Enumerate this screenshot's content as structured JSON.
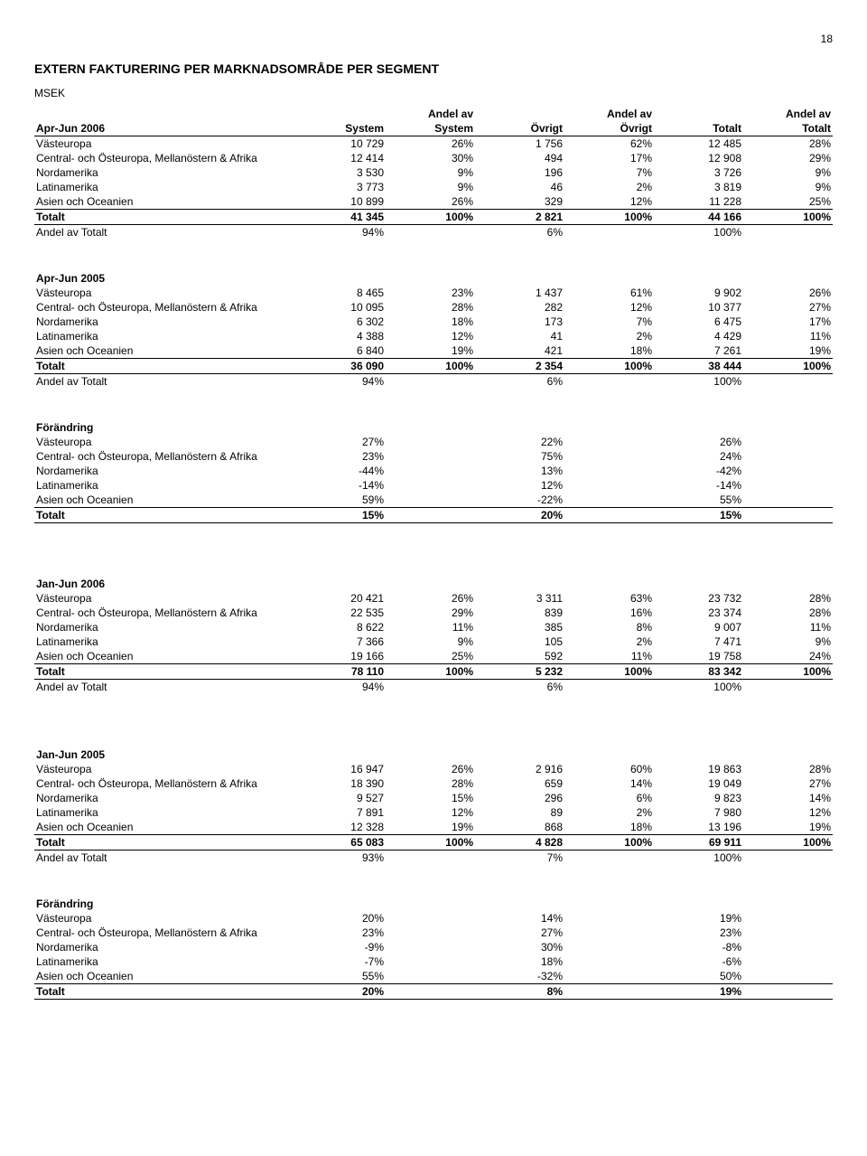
{
  "page_number": "18",
  "title": "EXTERN FAKTURERING PER MARKNADSOMRÅDE PER SEGMENT",
  "unit": "MSEK",
  "header": {
    "andelav": "Andel av",
    "c1": "System",
    "c2": "System",
    "c3": "Övrigt",
    "c4": "Övrigt",
    "c5": "Totalt",
    "c6": "Totalt"
  },
  "region_labels": {
    "vasteuropa": "Västeuropa",
    "centraleast": "Central- och Östeuropa, Mellanöstern & Afrika",
    "nordamerika": "Nordamerika",
    "latinamerika": "Latinamerika",
    "asien": "Asien och Oceanien",
    "totalt": "Totalt",
    "andelav": "Andel av Totalt"
  },
  "sections": {
    "apr06": {
      "title": "Apr-Jun 2006",
      "r": {
        "vasteuropa": [
          "10 729",
          "26%",
          "1 756",
          "62%",
          "12 485",
          "28%"
        ],
        "centraleast": [
          "12 414",
          "30%",
          "494",
          "17%",
          "12 908",
          "29%"
        ],
        "nordamerika": [
          "3 530",
          "9%",
          "196",
          "7%",
          "3 726",
          "9%"
        ],
        "latinamerika": [
          "3 773",
          "9%",
          "46",
          "2%",
          "3 819",
          "9%"
        ],
        "asien": [
          "10 899",
          "26%",
          "329",
          "12%",
          "11 228",
          "25%"
        ]
      },
      "tot": [
        "41 345",
        "100%",
        "2 821",
        "100%",
        "44 166",
        "100%"
      ],
      "share": [
        "94%",
        "",
        "6%",
        "",
        "100%",
        ""
      ]
    },
    "apr05": {
      "title": "Apr-Jun 2005",
      "r": {
        "vasteuropa": [
          "8 465",
          "23%",
          "1 437",
          "61%",
          "9 902",
          "26%"
        ],
        "centraleast": [
          "10 095",
          "28%",
          "282",
          "12%",
          "10 377",
          "27%"
        ],
        "nordamerika": [
          "6 302",
          "18%",
          "173",
          "7%",
          "6 475",
          "17%"
        ],
        "latinamerika": [
          "4 388",
          "12%",
          "41",
          "2%",
          "4 429",
          "11%"
        ],
        "asien": [
          "6 840",
          "19%",
          "421",
          "18%",
          "7 261",
          "19%"
        ]
      },
      "tot": [
        "36 090",
        "100%",
        "2 354",
        "100%",
        "38 444",
        "100%"
      ],
      "share": [
        "94%",
        "",
        "6%",
        "",
        "100%",
        ""
      ]
    },
    "chg1": {
      "title": "Förändring",
      "r": {
        "vasteuropa": [
          "27%",
          "",
          "22%",
          "",
          "26%",
          ""
        ],
        "centraleast": [
          "23%",
          "",
          "75%",
          "",
          "24%",
          ""
        ],
        "nordamerika": [
          "-44%",
          "",
          "13%",
          "",
          "-42%",
          ""
        ],
        "latinamerika": [
          "-14%",
          "",
          "12%",
          "",
          "-14%",
          ""
        ],
        "asien": [
          "59%",
          "",
          "-22%",
          "",
          "55%",
          ""
        ]
      },
      "tot": [
        "15%",
        "",
        "20%",
        "",
        "15%",
        ""
      ]
    },
    "jan06": {
      "title": "Jan-Jun 2006",
      "r": {
        "vasteuropa": [
          "20 421",
          "26%",
          "3 311",
          "63%",
          "23 732",
          "28%"
        ],
        "centraleast": [
          "22 535",
          "29%",
          "839",
          "16%",
          "23 374",
          "28%"
        ],
        "nordamerika": [
          "8 622",
          "11%",
          "385",
          "8%",
          "9 007",
          "11%"
        ],
        "latinamerika": [
          "7 366",
          "9%",
          "105",
          "2%",
          "7 471",
          "9%"
        ],
        "asien": [
          "19 166",
          "25%",
          "592",
          "11%",
          "19 758",
          "24%"
        ]
      },
      "tot": [
        "78 110",
        "100%",
        "5 232",
        "100%",
        "83 342",
        "100%"
      ],
      "share": [
        "94%",
        "",
        "6%",
        "",
        "100%",
        ""
      ]
    },
    "jan05": {
      "title": "Jan-Jun 2005",
      "r": {
        "vasteuropa": [
          "16 947",
          "26%",
          "2 916",
          "60%",
          "19 863",
          "28%"
        ],
        "centraleast": [
          "18 390",
          "28%",
          "659",
          "14%",
          "19 049",
          "27%"
        ],
        "nordamerika": [
          "9 527",
          "15%",
          "296",
          "6%",
          "9 823",
          "14%"
        ],
        "latinamerika": [
          "7 891",
          "12%",
          "89",
          "2%",
          "7 980",
          "12%"
        ],
        "asien": [
          "12 328",
          "19%",
          "868",
          "18%",
          "13 196",
          "19%"
        ]
      },
      "tot": [
        "65 083",
        "100%",
        "4 828",
        "100%",
        "69 911",
        "100%"
      ],
      "share": [
        "93%",
        "",
        "7%",
        "",
        "100%",
        ""
      ]
    },
    "chg2": {
      "title": "Förändring",
      "r": {
        "vasteuropa": [
          "20%",
          "",
          "14%",
          "",
          "19%",
          ""
        ],
        "centraleast": [
          "23%",
          "",
          "27%",
          "",
          "23%",
          ""
        ],
        "nordamerika": [
          "-9%",
          "",
          "30%",
          "",
          "-8%",
          ""
        ],
        "latinamerika": [
          "-7%",
          "",
          "18%",
          "",
          "-6%",
          ""
        ],
        "asien": [
          "55%",
          "",
          "-32%",
          "",
          "50%",
          ""
        ]
      },
      "tot": [
        "20%",
        "",
        "8%",
        "",
        "19%",
        ""
      ]
    }
  }
}
